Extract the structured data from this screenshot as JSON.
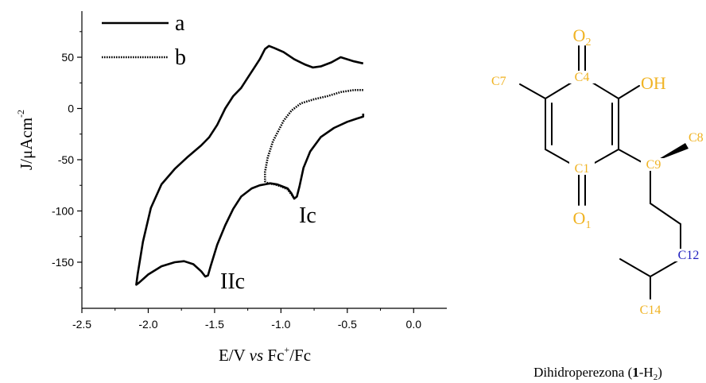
{
  "colors": {
    "atom_default": "#f0b323",
    "atom_c12": "#1f1fbf",
    "line": "#000000"
  },
  "chart_data": {
    "type": "line",
    "xlabel": {
      "pre": "E/V ",
      "italic": "vs",
      "mid": " Fc",
      "sup": "+",
      "post": "/Fc"
    },
    "ylabel": {
      "pre": "J/μAcm",
      "sup": "-2"
    },
    "xlim": [
      -2.5,
      0.25
    ],
    "ylim": [
      -195,
      95
    ],
    "xticks": [
      -2.5,
      -2.0,
      -1.5,
      -1.0,
      -0.5,
      0.0
    ],
    "xtick_labels": [
      "-2.5",
      "-2.0",
      "-1.5",
      "-1.0",
      "-0.5",
      "0.0"
    ],
    "yticks": [
      -150,
      -100,
      -50,
      0,
      50
    ],
    "ytick_labels": [
      "-150",
      "-100",
      "-50",
      "0",
      "50"
    ],
    "legend_position": "top-left",
    "series": [
      {
        "name": "a",
        "style": "solid",
        "x": [
          -0.38,
          -0.45,
          -0.55,
          -0.62,
          -0.7,
          -0.76,
          -0.82,
          -0.9,
          -0.98,
          -1.05,
          -1.09,
          -1.12,
          -1.16,
          -1.2,
          -1.25,
          -1.3,
          -1.36,
          -1.42,
          -1.48,
          -1.54,
          -1.6,
          -1.7,
          -1.8,
          -1.9,
          -1.98,
          -2.04,
          -2.08,
          -2.09,
          -2.07,
          -2.0,
          -1.9,
          -1.8,
          -1.73,
          -1.66,
          -1.6,
          -1.57,
          -1.55,
          -1.53,
          -1.48,
          -1.42,
          -1.36,
          -1.3,
          -1.22,
          -1.16,
          -1.12,
          -1.08,
          -1.03,
          -0.99,
          -0.95,
          -0.92,
          -0.9,
          -0.88,
          -0.86,
          -0.83,
          -0.78,
          -0.7,
          -0.6,
          -0.5,
          -0.43,
          -0.38,
          -0.38
        ],
        "y": [
          44,
          46,
          50,
          45,
          41,
          40,
          43,
          48,
          55,
          59,
          61,
          58,
          48,
          40,
          30,
          20,
          12,
          0,
          -16,
          -28,
          -36,
          -47,
          -59,
          -74,
          -97,
          -130,
          -162,
          -172,
          -170,
          -162,
          -154,
          -150,
          -149,
          -152,
          -159,
          -164,
          -163,
          -154,
          -133,
          -114,
          -98,
          -86,
          -78,
          -75,
          -74,
          -73,
          -74,
          -76,
          -78,
          -83,
          -88,
          -86,
          -76,
          -58,
          -42,
          -28,
          -19,
          -13,
          -10,
          -8,
          -5
        ]
      },
      {
        "name": "b",
        "style": "dotted",
        "x": [
          -0.38,
          -0.45,
          -0.55,
          -0.65,
          -0.75,
          -0.85,
          -0.92,
          -0.98,
          -1.02,
          -1.06,
          -1.1,
          -1.12,
          -1.12,
          -1.1,
          -1.05,
          -1.0,
          -0.95,
          -0.92,
          -0.9
        ],
        "y": [
          18,
          18,
          16,
          12,
          9,
          5,
          -2,
          -12,
          -22,
          -32,
          -48,
          -62,
          -71,
          -73,
          -74,
          -76,
          -79,
          -84,
          -88
        ]
      }
    ],
    "annotations": [
      {
        "text": "Ic",
        "x": -0.92,
        "y": -115
      },
      {
        "text": "IIc",
        "x": -1.42,
        "y": -178
      }
    ]
  },
  "structure": {
    "atoms": {
      "O2": {
        "main": "O",
        "sub": "2"
      },
      "O1": {
        "main": "O",
        "sub": "1"
      },
      "OH": "OH",
      "C1": "C1",
      "C4": "C4",
      "C7": "C7",
      "C8": "C8",
      "C9": "C9",
      "C12": "C12",
      "C14": "C14"
    },
    "caption": {
      "pre": "Dihidroperezona (",
      "bold": "1",
      "mid": "-H",
      "sub": "2",
      "post": ")"
    }
  }
}
